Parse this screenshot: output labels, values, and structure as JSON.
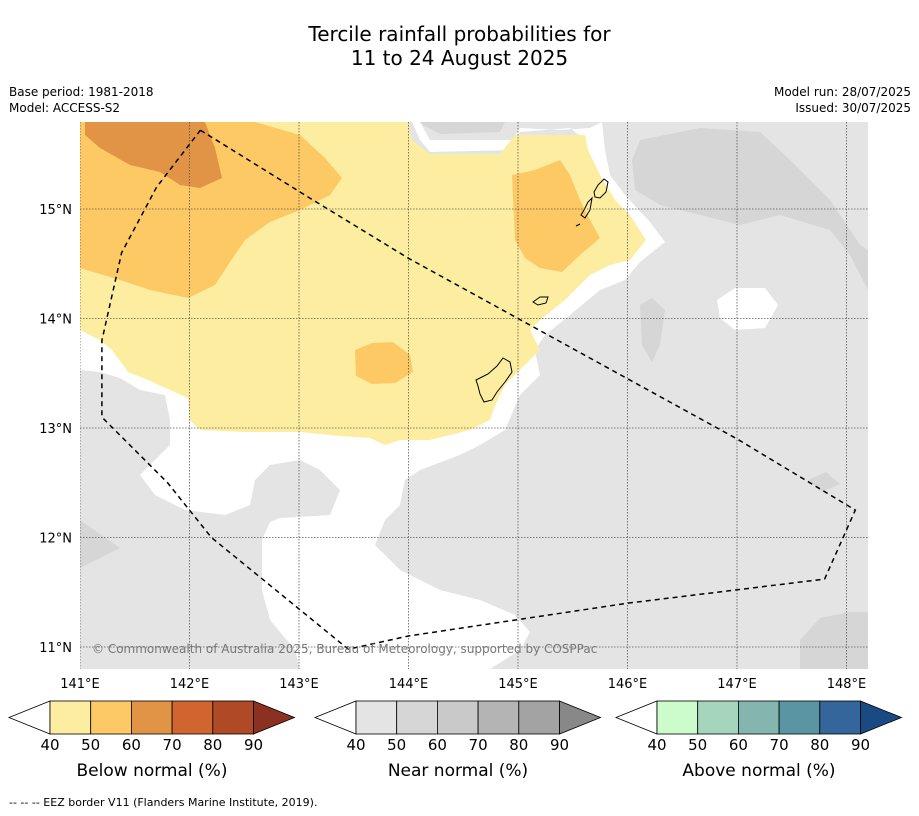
{
  "title": {
    "line1": "Tercile rainfall probabilities for",
    "line2": "11 to 24 August 2025"
  },
  "meta": {
    "base_period": "Base period: 1981-2018",
    "model": "Model: ACCESS-S2",
    "model_run": "Model run: 28/07/2025",
    "issued": "Issued: 30/07/2025"
  },
  "map": {
    "lat_labels": [
      "15°N",
      "14°N",
      "13°N",
      "12°N",
      "11°N"
    ],
    "lon_labels": [
      "141°E",
      "142°E",
      "143°E",
      "144°E",
      "145°E",
      "146°E",
      "147°E",
      "148°E"
    ],
    "copyright": "© Commonwealth of Australia 2025, Bureau of Meteorology, supported by COSPPac",
    "extent": {
      "lon_min": 141.0,
      "lon_max": 148.2,
      "lat_min": 10.8,
      "lat_max": 15.8
    },
    "eez_border_lonlat": [
      [
        142.1,
        15.72
      ],
      [
        143.1,
        15.1
      ],
      [
        144.0,
        14.55
      ],
      [
        145.0,
        14.0
      ],
      [
        146.0,
        13.45
      ],
      [
        147.0,
        12.9
      ],
      [
        148.08,
        12.25
      ],
      [
        147.8,
        11.62
      ],
      [
        146.0,
        11.4
      ],
      [
        145.0,
        11.25
      ],
      [
        144.0,
        11.1
      ],
      [
        143.45,
        10.98
      ],
      [
        142.2,
        12.0
      ],
      [
        141.8,
        12.5
      ],
      [
        141.2,
        13.1
      ],
      [
        141.2,
        13.8
      ],
      [
        141.38,
        14.6
      ],
      [
        141.7,
        15.2
      ],
      [
        142.1,
        15.72
      ]
    ]
  },
  "legends": [
    {
      "title": "Below normal (%)",
      "ticks": [
        "40",
        "50",
        "60",
        "70",
        "80",
        "90"
      ],
      "colors": [
        "#fdeda0",
        "#fdc965",
        "#e29446",
        "#d06530",
        "#b04a26",
        "#8c3120"
      ]
    },
    {
      "title": "Near normal (%)",
      "ticks": [
        "40",
        "50",
        "60",
        "70",
        "80",
        "90"
      ],
      "colors": [
        "#e4e4e4",
        "#d6d6d6",
        "#c9c9c9",
        "#b4b4b4",
        "#a3a3a3",
        "#888888"
      ]
    },
    {
      "title": "Above normal (%)",
      "ticks": [
        "40",
        "50",
        "60",
        "70",
        "80",
        "90"
      ],
      "colors": [
        "#ccfbcc",
        "#a5d6bd",
        "#84b6af",
        "#5a95a3",
        "#34659b",
        "#1a4a84"
      ]
    }
  ],
  "footnote": "--  --  -- EEZ border V11 (Flanders Marine Institute, 2019)."
}
